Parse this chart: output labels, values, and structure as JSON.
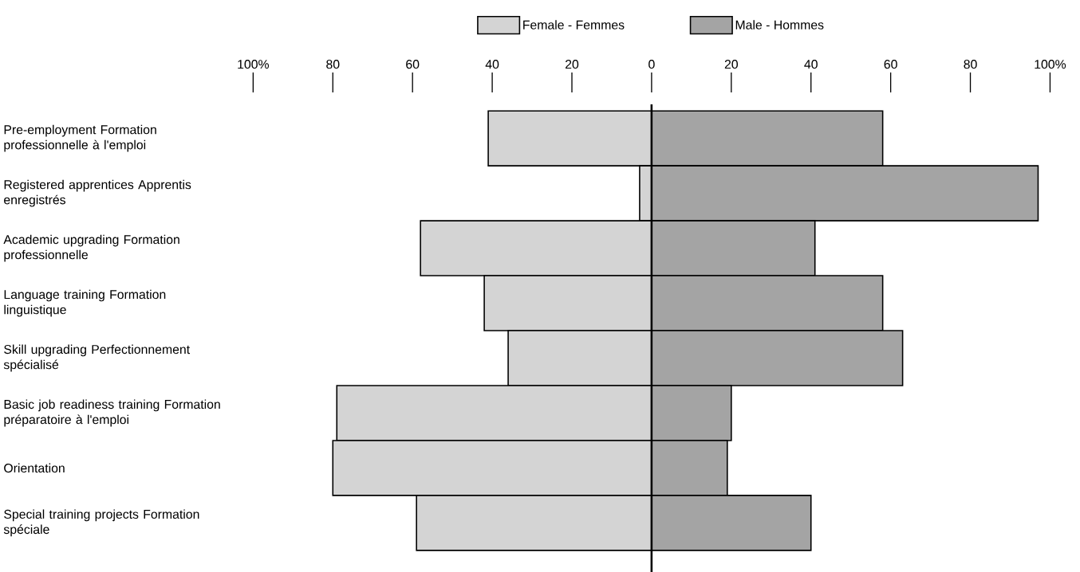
{
  "chart_data": {
    "type": "bar",
    "orientation": "horizontal",
    "categories": [
      "Pre-employment Formation professionnelle à l'emploi",
      "Registered apprentices Apprentis enregistrés",
      "Academic upgrading Formation professionnelle",
      "Language training Formation linguistique",
      "Skill upgrading Perfectionnement spécialisé",
      "Basic job readiness training Formation préparatoire à l'emploi",
      "Orientation",
      "Special training projects Formation spéciale"
    ],
    "series": [
      {
        "name": "Female - Femmes",
        "color": "#d4d4d4",
        "values": [
          -41,
          -3,
          -58,
          -42,
          -36,
          -79,
          -80,
          -59
        ]
      },
      {
        "name": "Male - Hommes",
        "color": "#a4a4a4",
        "values": [
          58,
          97,
          41,
          58,
          63,
          20,
          19,
          40
        ]
      }
    ],
    "xlim": [
      -100,
      100
    ],
    "xticks": [
      {
        "value": -100,
        "label": "100%"
      },
      {
        "value": -80,
        "label": "80"
      },
      {
        "value": -60,
        "label": "60"
      },
      {
        "value": -40,
        "label": "40"
      },
      {
        "value": -20,
        "label": "20"
      },
      0,
      20,
      40,
      60,
      80,
      {
        "value": 100,
        "label": "100%"
      }
    ],
    "ref_lines": [
      {
        "axis": "x",
        "value": 0
      }
    ],
    "stacked": true,
    "legend": "top"
  }
}
